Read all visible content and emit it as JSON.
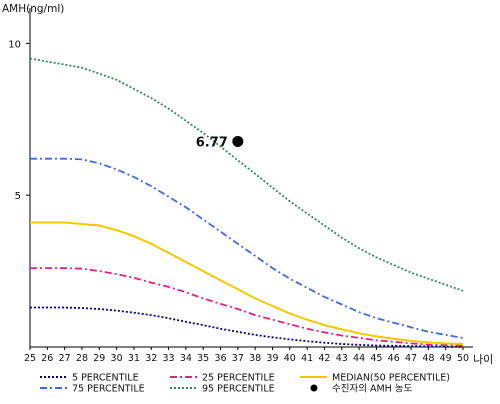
{
  "chart_data": {
    "type": "line",
    "ylabel": "AMH(ng/ml)",
    "xlabel": "나이",
    "xlim": [
      25,
      50
    ],
    "ylim": [
      0,
      11
    ],
    "x_ticks": [
      25,
      26,
      27,
      28,
      29,
      30,
      31,
      32,
      33,
      34,
      35,
      36,
      37,
      38,
      39,
      40,
      41,
      42,
      43,
      44,
      45,
      46,
      47,
      48,
      49,
      50
    ],
    "y_ticks": [
      5,
      10
    ],
    "series": [
      {
        "name": "5 PERCENTILE",
        "color": "#00008b",
        "style": "dotted",
        "x": [
          25,
          26,
          27,
          28,
          29,
          30,
          31,
          32,
          33,
          34,
          35,
          36,
          37,
          38,
          39,
          40,
          41,
          42,
          43,
          44,
          45,
          46,
          47,
          48,
          49,
          50
        ],
        "values": [
          1.3,
          1.3,
          1.3,
          1.28,
          1.25,
          1.2,
          1.13,
          1.05,
          0.95,
          0.83,
          0.72,
          0.6,
          0.5,
          0.4,
          0.32,
          0.25,
          0.19,
          0.14,
          0.1,
          0.07,
          0.05,
          0.04,
          0.03,
          0.02,
          0.01,
          0.0
        ]
      },
      {
        "name": "75 PERCENTILE",
        "color": "#4169e1",
        "style": "dashdot",
        "x": [
          25,
          26,
          27,
          28,
          29,
          30,
          31,
          32,
          33,
          34,
          35,
          36,
          37,
          38,
          39,
          40,
          41,
          42,
          43,
          44,
          45,
          46,
          47,
          48,
          49,
          50
        ],
        "values": [
          6.2,
          6.2,
          6.2,
          6.18,
          6.05,
          5.85,
          5.6,
          5.3,
          4.95,
          4.6,
          4.2,
          3.8,
          3.4,
          3.0,
          2.6,
          2.25,
          1.95,
          1.65,
          1.4,
          1.15,
          0.95,
          0.8,
          0.65,
          0.5,
          0.4,
          0.3
        ]
      },
      {
        "name": "25 PERCENTILE",
        "color": "#e0218a",
        "style": "dashdot",
        "x": [
          25,
          26,
          27,
          28,
          29,
          30,
          31,
          32,
          33,
          34,
          35,
          36,
          37,
          38,
          39,
          40,
          41,
          42,
          43,
          44,
          45,
          46,
          47,
          48,
          49,
          50
        ],
        "values": [
          2.6,
          2.6,
          2.6,
          2.58,
          2.5,
          2.4,
          2.28,
          2.12,
          1.98,
          1.8,
          1.6,
          1.42,
          1.25,
          1.05,
          0.9,
          0.75,
          0.6,
          0.48,
          0.38,
          0.3,
          0.22,
          0.17,
          0.12,
          0.08,
          0.06,
          0.05
        ]
      },
      {
        "name": "95 PERCENTILE",
        "color": "#2e8b57",
        "style": "dotted",
        "x": [
          25,
          26,
          27,
          28,
          29,
          30,
          31,
          32,
          33,
          34,
          35,
          36,
          37,
          38,
          39,
          40,
          41,
          42,
          43,
          44,
          45,
          46,
          47,
          48,
          49,
          50
        ],
        "values": [
          9.5,
          9.4,
          9.3,
          9.2,
          9.0,
          8.8,
          8.5,
          8.2,
          7.85,
          7.45,
          7.05,
          6.6,
          6.15,
          5.7,
          5.25,
          4.8,
          4.4,
          4.0,
          3.6,
          3.25,
          2.95,
          2.7,
          2.45,
          2.25,
          2.05,
          1.85
        ]
      },
      {
        "name": "MEDIAN(50 PERCENTILE)",
        "color": "#f5c800",
        "style": "solid",
        "x": [
          25,
          26,
          27,
          28,
          29,
          30,
          31,
          32,
          33,
          34,
          35,
          36,
          37,
          38,
          39,
          40,
          41,
          42,
          43,
          44,
          45,
          46,
          47,
          48,
          49,
          50
        ],
        "values": [
          4.1,
          4.1,
          4.1,
          4.05,
          4.0,
          3.85,
          3.65,
          3.4,
          3.1,
          2.8,
          2.5,
          2.2,
          1.9,
          1.6,
          1.35,
          1.1,
          0.9,
          0.72,
          0.58,
          0.45,
          0.35,
          0.27,
          0.2,
          0.15,
          0.12,
          0.1
        ]
      }
    ],
    "marker": {
      "label": "수진자의 AMH 농도",
      "x": 37,
      "y": 6.77,
      "value_label": "6.77"
    },
    "legend_position": "bottom",
    "grid": false
  }
}
